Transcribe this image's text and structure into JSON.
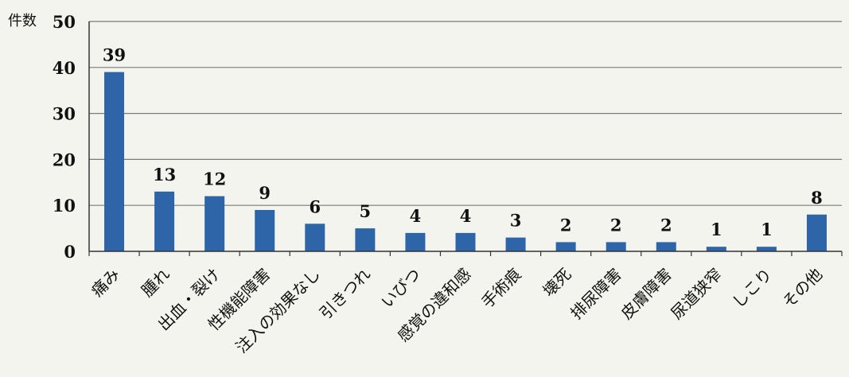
{
  "chart_data": {
    "type": "bar",
    "ylabel": "件数",
    "ylim": [
      0,
      50
    ],
    "yticks": [
      0,
      10,
      20,
      30,
      40,
      50
    ],
    "grid": true,
    "categories": [
      "痛み",
      "腫れ",
      "出血・裂け",
      "性機能障害",
      "注入の効果なし",
      "引きつれ",
      "いびつ",
      "感覚の違和感",
      "手術痕",
      "壊死",
      "排尿障害",
      "皮膚障害",
      "尿道狭窄",
      "しこり",
      "その他"
    ],
    "values": [
      39,
      13,
      12,
      9,
      6,
      5,
      4,
      4,
      3,
      2,
      2,
      2,
      1,
      1,
      8
    ],
    "data_labels": [
      "39",
      "13",
      "12",
      "9",
      "6",
      "5",
      "4",
      "4",
      "3",
      "2",
      "2",
      "2",
      "1",
      "1",
      "8"
    ],
    "colors": {
      "bar": "#2e65a8",
      "grid": "#7a7a7a",
      "axis": "#333333"
    }
  }
}
